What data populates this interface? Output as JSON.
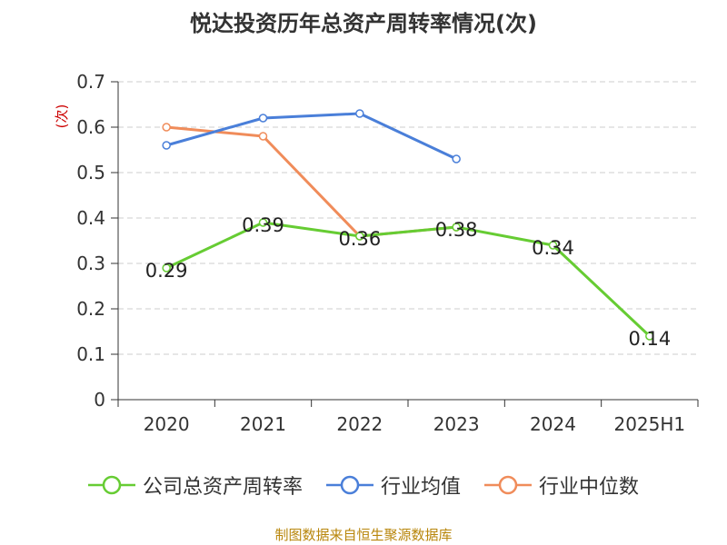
{
  "title": "悦达投资历年总资产周转率情况(次)",
  "source": "制图数据来自恒生聚源数据库",
  "chart_data": {
    "type": "line",
    "categories": [
      "2020",
      "2021",
      "2022",
      "2023",
      "2024",
      "2025H1"
    ],
    "ylabel": "(次)",
    "ylim": [
      0,
      0.7
    ],
    "yticks": [
      0,
      0.1,
      0.2,
      0.3,
      0.4,
      0.5,
      0.6,
      0.7
    ],
    "ytick_labels": [
      "0",
      "0.1",
      "0.2",
      "0.3",
      "0.4",
      "0.5",
      "0.6",
      "0.7"
    ],
    "grid": true,
    "legend_position": "bottom",
    "series": [
      {
        "name": "公司总资产周转率",
        "color": "#66cc33",
        "values": [
          0.29,
          0.39,
          0.36,
          0.38,
          0.34,
          0.14
        ],
        "labels": [
          "0.29",
          "0.39",
          "0.36",
          "0.38",
          "0.34",
          "0.14"
        ]
      },
      {
        "name": "行业均值",
        "color": "#4a7fd9",
        "values": [
          0.56,
          0.62,
          0.63,
          0.53,
          null,
          null
        ]
      },
      {
        "name": "行业中位数",
        "color": "#f08c5a",
        "values": [
          0.6,
          0.58,
          0.36,
          0.38,
          null,
          null
        ]
      }
    ]
  }
}
